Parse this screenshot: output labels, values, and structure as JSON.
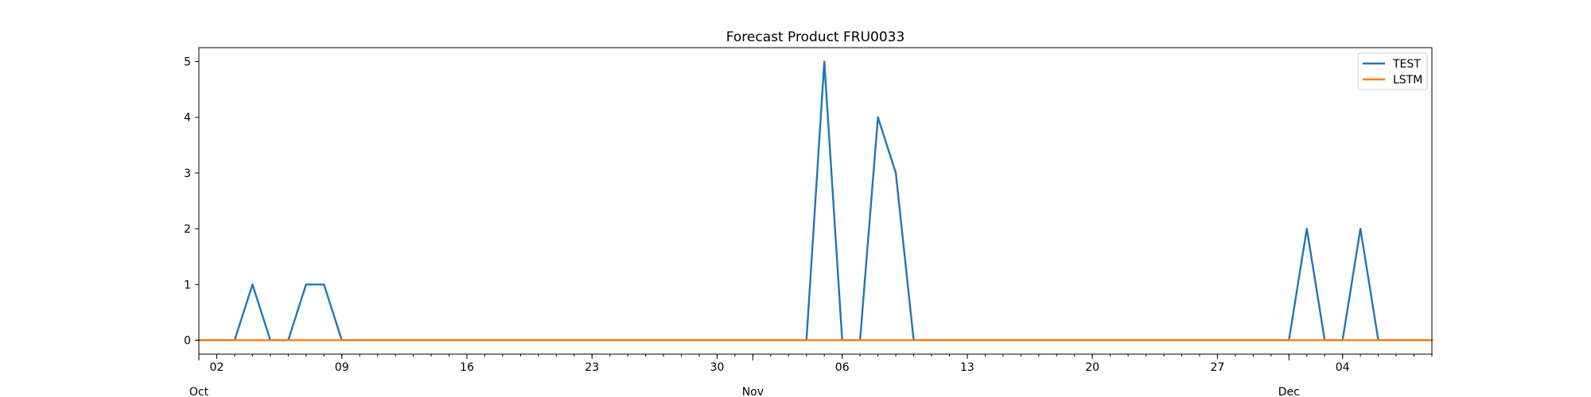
{
  "chart_data": {
    "type": "line",
    "title": "Forecast Product FRU0033",
    "xlabel": "",
    "ylabel": "",
    "x_start": "2023-10-01",
    "x_end": "2023-12-09",
    "ylim": [
      -0.25,
      5.25
    ],
    "y_ticks": [
      0,
      1,
      2,
      3,
      4,
      5
    ],
    "x_minor_ticks": [
      {
        "date": "2023-10-02",
        "label": "02"
      },
      {
        "date": "2023-10-09",
        "label": "09"
      },
      {
        "date": "2023-10-16",
        "label": "16"
      },
      {
        "date": "2023-10-23",
        "label": "23"
      },
      {
        "date": "2023-10-30",
        "label": "30"
      },
      {
        "date": "2023-11-06",
        "label": "06"
      },
      {
        "date": "2023-11-13",
        "label": "13"
      },
      {
        "date": "2023-11-20",
        "label": "20"
      },
      {
        "date": "2023-11-27",
        "label": "27"
      },
      {
        "date": "2023-12-04",
        "label": "04"
      }
    ],
    "x_major_ticks": [
      {
        "date": "2023-10-01",
        "label": "Oct"
      },
      {
        "date": "2023-11-01",
        "label": "Nov"
      },
      {
        "date": "2023-12-01",
        "label": "Dec"
      }
    ],
    "grid": false,
    "legend_position": "top-right",
    "series": [
      {
        "name": "TEST",
        "color": "#1f77b4",
        "points": [
          [
            "2023-10-01",
            0
          ],
          [
            "2023-10-03",
            0
          ],
          [
            "2023-10-04",
            1
          ],
          [
            "2023-10-05",
            0
          ],
          [
            "2023-10-06",
            0
          ],
          [
            "2023-10-07",
            1
          ],
          [
            "2023-10-08",
            1
          ],
          [
            "2023-10-09",
            0
          ],
          [
            "2023-11-04",
            0
          ],
          [
            "2023-11-05",
            5
          ],
          [
            "2023-11-06",
            0
          ],
          [
            "2023-11-07",
            0
          ],
          [
            "2023-11-08",
            4
          ],
          [
            "2023-11-09",
            3
          ],
          [
            "2023-11-10",
            0
          ],
          [
            "2023-12-01",
            0
          ],
          [
            "2023-12-02",
            2
          ],
          [
            "2023-12-03",
            0
          ],
          [
            "2023-12-04",
            0
          ],
          [
            "2023-12-05",
            2
          ],
          [
            "2023-12-06",
            0
          ],
          [
            "2023-12-09",
            0
          ]
        ]
      },
      {
        "name": "LSTM",
        "color": "#ff7f0e",
        "points": [
          [
            "2023-10-01",
            0
          ],
          [
            "2023-12-09",
            0
          ]
        ]
      }
    ]
  }
}
